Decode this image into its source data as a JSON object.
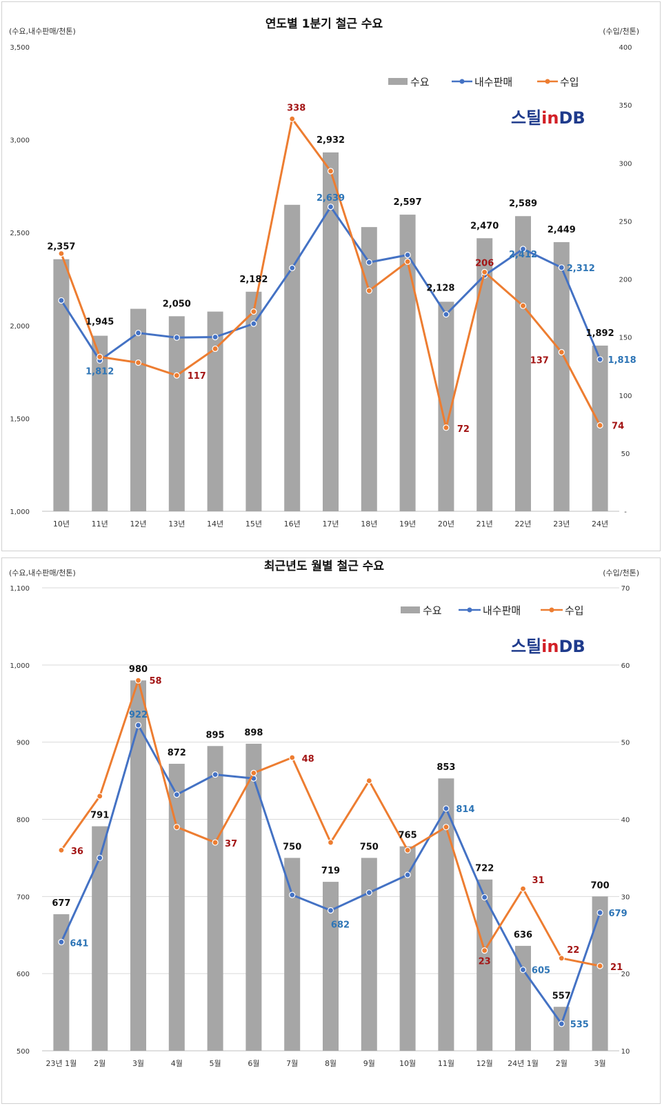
{
  "chart_data": [
    {
      "type": "bar",
      "title": "연도별 1분기 철근 수요",
      "ylabel_left": "(수요,내수판매/천톤)",
      "ylabel_right": "(수입/천톤)",
      "categories": [
        "10년",
        "11년",
        "12년",
        "13년",
        "14년",
        "15년",
        "16년",
        "17년",
        "18년",
        "19년",
        "20년",
        "21년",
        "22년",
        "23년",
        "24년"
      ],
      "ylim_left": [
        1000,
        3500
      ],
      "ylim_right": [
        0,
        400
      ],
      "yticks_left": [
        "1,000",
        "1,500",
        "2,000",
        "2,500",
        "3,000",
        "3,500"
      ],
      "yticks_right": [
        "-",
        "50",
        "100",
        "150",
        "200",
        "250",
        "300",
        "350",
        "400"
      ],
      "grid": false,
      "legend_position": "top-right",
      "legend": [
        "수요",
        "내수판매",
        "수입"
      ],
      "logo": {
        "part1": "스틸",
        "part2": "in",
        "part3": "DB"
      },
      "colors": {
        "demand": "#a6a6a6",
        "domestic": "#4472c4",
        "import": "#ed7d31",
        "domestic_label": "#2e75b6",
        "import_label": "#a31515"
      },
      "series": [
        {
          "name": "수요",
          "type": "bar",
          "axis": "left",
          "values": [
            2357,
            1945,
            2090,
            2050,
            2075,
            2182,
            2650,
            2932,
            2530,
            2597,
            2128,
            2470,
            2589,
            2449,
            1892
          ],
          "labels": [
            "2,357",
            "1,945",
            "",
            "2,050",
            "",
            "2,182",
            "",
            "2,932",
            "",
            "2,597",
            "2,128",
            "2,470",
            "2,589",
            "2,449",
            "1,892"
          ]
        },
        {
          "name": "내수판매",
          "type": "line",
          "axis": "left",
          "values": [
            2135,
            1812,
            1960,
            1935,
            1938,
            2010,
            2310,
            2639,
            2340,
            2380,
            2060,
            2270,
            2412,
            2312,
            1818
          ],
          "labels": [
            "",
            "1,812",
            "",
            "",
            "",
            "",
            "",
            "2,639",
            "",
            "",
            "",
            "",
            "2,412",
            "2,312",
            "1,818"
          ]
        },
        {
          "name": "수입",
          "type": "line",
          "axis": "right",
          "values": [
            222,
            133,
            128,
            117,
            140,
            172,
            338,
            293,
            190,
            215,
            72,
            206,
            177,
            137,
            74
          ],
          "labels": [
            "",
            "",
            "",
            "117",
            "",
            "",
            "338",
            "",
            "",
            "",
            "72",
            "206",
            "",
            "137",
            "74"
          ]
        }
      ]
    },
    {
      "type": "bar",
      "title": "최근년도 월별 철근 수요",
      "ylabel_left": "(수요,내수판매/천톤)",
      "ylabel_right": "(수입/천톤)",
      "categories": [
        "23년 1월",
        "2월",
        "3월",
        "4월",
        "5월",
        "6월",
        "7월",
        "8월",
        "9월",
        "10월",
        "11월",
        "12월",
        "24년 1월",
        "2월",
        "3월"
      ],
      "ylim_left": [
        500,
        1100
      ],
      "ylim_right": [
        10,
        70
      ],
      "yticks_left": [
        "500",
        "600",
        "700",
        "800",
        "900",
        "1,000",
        "1,100"
      ],
      "yticks_right": [
        "10",
        "20",
        "30",
        "40",
        "50",
        "60",
        "70"
      ],
      "grid": true,
      "legend_position": "top-right",
      "legend": [
        "수요",
        "내수판매",
        "수입"
      ],
      "logo": {
        "part1": "스틸",
        "part2": "in",
        "part3": "DB"
      },
      "colors": {
        "demand": "#a6a6a6",
        "domestic": "#4472c4",
        "import": "#ed7d31",
        "domestic_label": "#2e75b6",
        "import_label": "#a31515"
      },
      "series": [
        {
          "name": "수요",
          "type": "bar",
          "axis": "left",
          "values": [
            677,
            791,
            980,
            872,
            895,
            898,
            750,
            719,
            750,
            765,
            853,
            722,
            636,
            557,
            700
          ],
          "labels": [
            "677",
            "791",
            "980",
            "872",
            "895",
            "898",
            "750",
            "719",
            "750",
            "765",
            "853",
            "722",
            "636",
            "557",
            "700"
          ]
        },
        {
          "name": "내수판매",
          "type": "line",
          "axis": "left",
          "values": [
            641,
            750,
            922,
            832,
            858,
            853,
            702,
            682,
            705,
            728,
            814,
            699,
            605,
            535,
            679
          ],
          "labels": [
            "641",
            "",
            "922",
            "",
            "",
            "",
            "",
            "682",
            "",
            "",
            "814",
            "",
            "605",
            "535",
            "679"
          ]
        },
        {
          "name": "수입",
          "type": "line",
          "axis": "right",
          "values": [
            36,
            43,
            58,
            39,
            37,
            46,
            48,
            37,
            45,
            36,
            39,
            23,
            31,
            22,
            21
          ],
          "labels": [
            "36",
            "",
            "58",
            "",
            "37",
            "",
            "48",
            "",
            "",
            "",
            "",
            "23",
            "31",
            "22",
            "21"
          ]
        }
      ]
    }
  ]
}
